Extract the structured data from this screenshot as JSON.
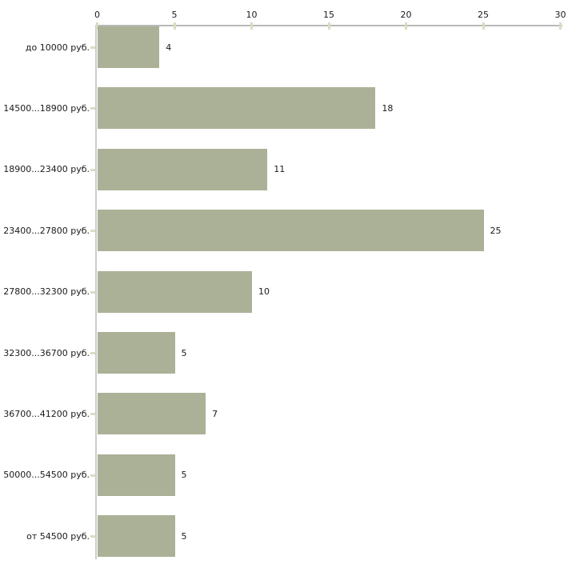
{
  "chart_data": {
    "type": "bar",
    "orientation": "horizontal",
    "title": "",
    "xlabel": "",
    "ylabel": "",
    "categories": [
      "до 10000 руб.",
      "14500...18900 руб.",
      "18900...23400 руб.",
      "23400...27800 руб.",
      "27800...32300 руб.",
      "32300...36700 руб.",
      "36700...41200 руб.",
      "50000...54500 руб.",
      "от 54500 руб."
    ],
    "values": [
      4,
      18,
      11,
      25,
      10,
      5,
      7,
      5,
      5
    ],
    "value_labels": [
      "4",
      "18",
      "11",
      "25",
      "10",
      "5",
      "7",
      "5",
      "5"
    ],
    "x_ticks": [
      0,
      5,
      10,
      15,
      20,
      25,
      30
    ],
    "xlim": [
      0,
      30
    ],
    "grid": "off",
    "legend": "none",
    "colors": {
      "bar": "#abb197",
      "x_axis_line": "#b9b9b9",
      "y_axis_line": "#cccccc",
      "tick_marks": "#dadec0",
      "text": "#1a1a1a",
      "background": "#ffffff"
    }
  }
}
